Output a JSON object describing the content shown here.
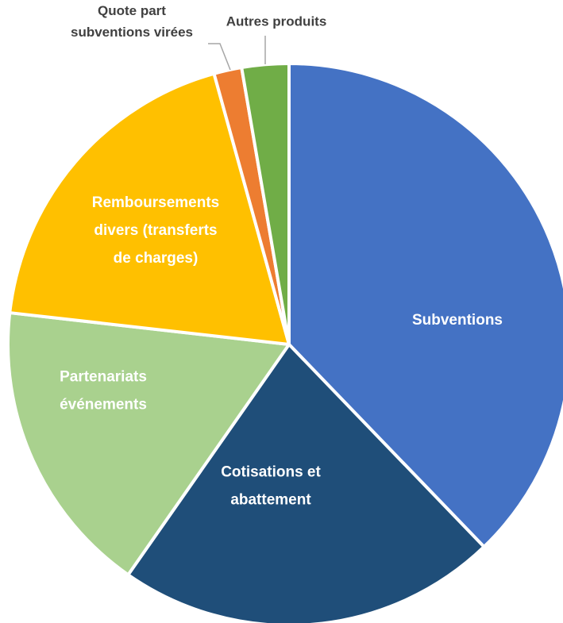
{
  "chart_data": {
    "type": "pie",
    "title": "",
    "start_angle_deg": 0,
    "direction": "clockwise",
    "legend": "none",
    "slices": [
      {
        "name": "Subventions",
        "lines": [
          "Subventions"
        ],
        "value": 37.8,
        "color": "#4472c4",
        "label_pos": "inside"
      },
      {
        "name": "Cotisations et abattement",
        "lines": [
          "Cotisations et",
          "abattement"
        ],
        "value": 21.9,
        "color": "#1f4e79",
        "label_pos": "inside"
      },
      {
        "name": "Partenariats événements",
        "lines": [
          "Partenariats",
          "événements"
        ],
        "value": 17.1,
        "color": "#a9d18e",
        "label_pos": "inside"
      },
      {
        "name": "Remboursements divers (transferts de charges)",
        "lines": [
          "Remboursements",
          "divers (transferts",
          "de charges)"
        ],
        "value": 18.9,
        "color": "#ffc000",
        "label_pos": "inside"
      },
      {
        "name": "Quote part subventions virées",
        "lines": [
          "Quote part",
          "subventions virées"
        ],
        "value": 1.6,
        "color": "#ed7d31",
        "label_pos": "outside"
      },
      {
        "name": "Autres produits",
        "lines": [
          "Autres produits"
        ],
        "value": 2.7,
        "color": "#70ad47",
        "label_pos": "outside"
      }
    ]
  }
}
